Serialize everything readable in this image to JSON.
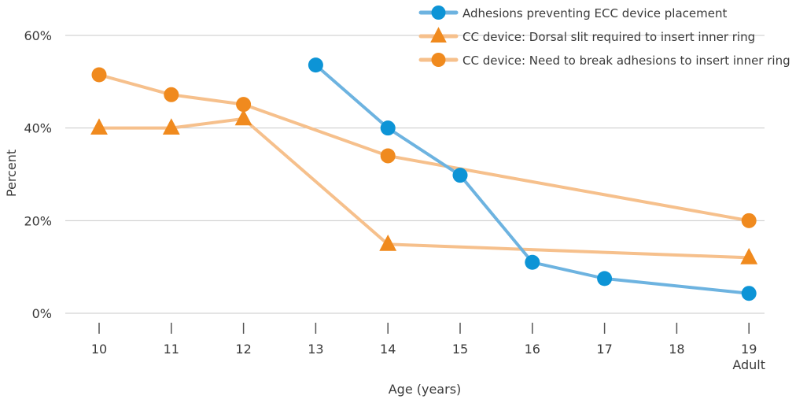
{
  "chart_data": {
    "type": "line",
    "title": "",
    "xlabel": "Age (years)",
    "ylabel": "Percent",
    "categories": [
      "10",
      "11",
      "12",
      "13",
      "14",
      "15",
      "16",
      "17",
      "18",
      "19"
    ],
    "x_sublabels": {
      "19": "Adult"
    },
    "ylim": [
      0,
      60
    ],
    "y_ticks": [
      0,
      20,
      40,
      60
    ],
    "y_tick_labels": [
      "0%",
      "20%",
      "40%",
      "60%"
    ],
    "grid": true,
    "legend_position": "top-right",
    "series": [
      {
        "name": "Adhesions preventing ECC device placement",
        "color": "#6db3e0",
        "marker": "circle",
        "marker_color": "#0d94d6",
        "values": [
          null,
          null,
          null,
          53.6,
          40.0,
          29.8,
          11.0,
          7.5,
          null,
          4.3
        ]
      },
      {
        "name": "CC device: Dorsal slit required to insert inner ring",
        "color": "#f6c08c",
        "marker": "triangle",
        "marker_color": "#f08a1e",
        "values": [
          40.0,
          40.0,
          42.0,
          null,
          14.9,
          null,
          null,
          null,
          null,
          12.0
        ]
      },
      {
        "name": "CC device: Need to break adhesions to insert inner ring",
        "color": "#f6c08c",
        "marker": "circle",
        "marker_color": "#f08a1e",
        "values": [
          51.5,
          47.2,
          45.1,
          null,
          34.0,
          null,
          null,
          null,
          null,
          20.0
        ]
      }
    ]
  }
}
